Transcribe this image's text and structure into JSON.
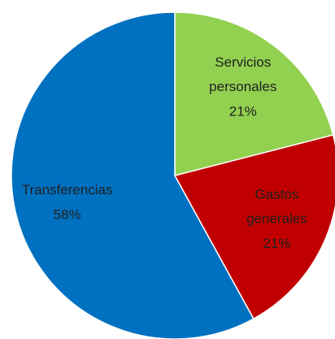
{
  "chart_data": {
    "type": "pie",
    "categories": [
      "Servicios personales",
      "Gastos generales",
      "Transferencias"
    ],
    "values": [
      21,
      21,
      58
    ],
    "value_labels": [
      "21%",
      "21%",
      "58%"
    ],
    "colors": [
      "#92d050",
      "#c00000",
      "#0070c0"
    ]
  }
}
